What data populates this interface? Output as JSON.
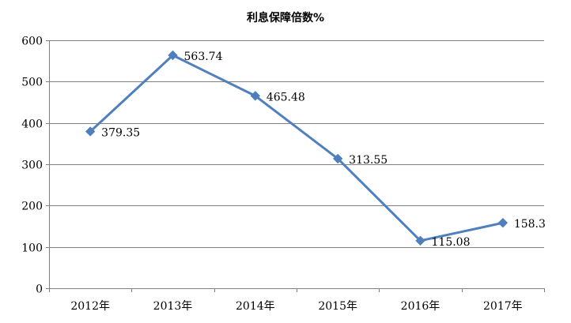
{
  "chart_data": {
    "type": "line",
    "title": "利息保障倍数%",
    "xlabel": "",
    "ylabel": "",
    "categories": [
      "2012年",
      "2013年",
      "2014年",
      "2015年",
      "2016年",
      "2017年"
    ],
    "series": [
      {
        "values": [
          379.35,
          563.74,
          465.48,
          313.55,
          115.08,
          158.3
        ],
        "labels": [
          "379.35",
          "563.74",
          "465.48",
          "313.55",
          "115.08",
          "158.3"
        ]
      }
    ],
    "ylim": [
      0,
      600
    ],
    "yticks": [
      0,
      100,
      200,
      300,
      400,
      500,
      600
    ],
    "ytick_labels": [
      "0",
      "100",
      "200",
      "300",
      "400",
      "500",
      "600"
    ],
    "grid": true,
    "legend": "none",
    "colors": {
      "line": "#4F7FBD",
      "marker": "#4F7FBD",
      "grid": "#808080",
      "axis": "#808080"
    }
  }
}
